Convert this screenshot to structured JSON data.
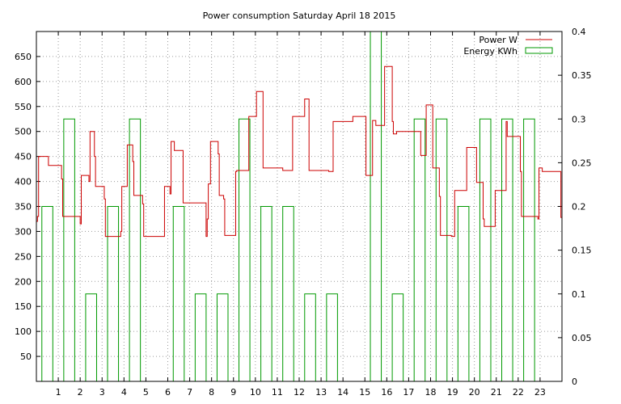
{
  "chart_data": {
    "type": "line",
    "title": "Power consumption Saturday April 18 2015",
    "xlabel": "",
    "ylabel": "",
    "y2label": "",
    "x_range": [
      0,
      24
    ],
    "y_range": [
      0,
      700
    ],
    "y2_range": [
      0,
      0.4
    ],
    "x_ticks": [
      1,
      2,
      3,
      4,
      5,
      6,
      7,
      8,
      9,
      10,
      11,
      12,
      13,
      14,
      15,
      16,
      17,
      18,
      19,
      20,
      21,
      22,
      23
    ],
    "y_ticks": [
      50,
      100,
      150,
      200,
      250,
      300,
      350,
      400,
      450,
      500,
      550,
      600,
      650
    ],
    "y2_ticks": [
      "0",
      "0.05",
      "0.1",
      "0.15",
      "0.2",
      "0.25",
      "0.3",
      "0.35",
      "0.4"
    ],
    "grid": true,
    "legend_position": "top-right",
    "colors": {
      "power": "#cc0000",
      "energy": "#009900"
    },
    "series": [
      {
        "name": "Power W",
        "axis": "y",
        "style": "steps",
        "points": [
          [
            0,
            320
          ],
          [
            0.05,
            330
          ],
          [
            0.1,
            450
          ],
          [
            0.5,
            450
          ],
          [
            0.55,
            432
          ],
          [
            1.1,
            432
          ],
          [
            1.15,
            405
          ],
          [
            1.2,
            330
          ],
          [
            1.95,
            330
          ],
          [
            2.0,
            315
          ],
          [
            2.05,
            412
          ],
          [
            2.35,
            412
          ],
          [
            2.4,
            400
          ],
          [
            2.45,
            500
          ],
          [
            2.6,
            500
          ],
          [
            2.65,
            450
          ],
          [
            2.7,
            390
          ],
          [
            3.05,
            390
          ],
          [
            3.1,
            365
          ],
          [
            3.15,
            290
          ],
          [
            3.8,
            290
          ],
          [
            3.85,
            300
          ],
          [
            3.9,
            390
          ],
          [
            4.1,
            390
          ],
          [
            4.15,
            473
          ],
          [
            4.35,
            473
          ],
          [
            4.4,
            440
          ],
          [
            4.45,
            372
          ],
          [
            4.8,
            372
          ],
          [
            4.85,
            355
          ],
          [
            4.9,
            290
          ],
          [
            5.8,
            290
          ],
          [
            5.85,
            390
          ],
          [
            6.05,
            390
          ],
          [
            6.1,
            375
          ],
          [
            6.15,
            480
          ],
          [
            6.25,
            480
          ],
          [
            6.3,
            462
          ],
          [
            6.65,
            462
          ],
          [
            6.7,
            357
          ],
          [
            7.7,
            357
          ],
          [
            7.75,
            290
          ],
          [
            7.8,
            325
          ],
          [
            7.85,
            395
          ],
          [
            7.9,
            395
          ],
          [
            7.95,
            480
          ],
          [
            8.25,
            480
          ],
          [
            8.3,
            455
          ],
          [
            8.35,
            372
          ],
          [
            8.5,
            372
          ],
          [
            8.55,
            365
          ],
          [
            8.6,
            292
          ],
          [
            9.05,
            292
          ],
          [
            9.1,
            420
          ],
          [
            9.15,
            422
          ],
          [
            9.65,
            422
          ],
          [
            9.7,
            530
          ],
          [
            10.0,
            530
          ],
          [
            10.05,
            580
          ],
          [
            10.3,
            580
          ],
          [
            10.35,
            427
          ],
          [
            11.2,
            427
          ],
          [
            11.25,
            422
          ],
          [
            11.65,
            422
          ],
          [
            11.7,
            530
          ],
          [
            12.2,
            530
          ],
          [
            12.25,
            565
          ],
          [
            12.4,
            565
          ],
          [
            12.45,
            422
          ],
          [
            13.3,
            422
          ],
          [
            13.35,
            420
          ],
          [
            13.5,
            420
          ],
          [
            13.55,
            520
          ],
          [
            14.4,
            520
          ],
          [
            14.45,
            530
          ],
          [
            15.0,
            530
          ],
          [
            15.05,
            412
          ],
          [
            15.3,
            412
          ],
          [
            15.35,
            522
          ],
          [
            15.45,
            522
          ],
          [
            15.5,
            512
          ],
          [
            15.85,
            512
          ],
          [
            15.9,
            630
          ],
          [
            16.2,
            630
          ],
          [
            16.25,
            520
          ],
          [
            16.3,
            495
          ],
          [
            16.4,
            495
          ],
          [
            16.45,
            500
          ],
          [
            17.5,
            500
          ],
          [
            17.55,
            452
          ],
          [
            17.75,
            452
          ],
          [
            17.8,
            553
          ],
          [
            18.05,
            553
          ],
          [
            18.1,
            427
          ],
          [
            18.35,
            427
          ],
          [
            18.4,
            370
          ],
          [
            18.45,
            292
          ],
          [
            18.9,
            292
          ],
          [
            18.95,
            290
          ],
          [
            19.05,
            290
          ],
          [
            19.1,
            382
          ],
          [
            19.6,
            382
          ],
          [
            19.65,
            468
          ],
          [
            20.05,
            468
          ],
          [
            20.1,
            398
          ],
          [
            20.35,
            398
          ],
          [
            20.4,
            325
          ],
          [
            20.45,
            310
          ],
          [
            20.9,
            310
          ],
          [
            20.95,
            382
          ],
          [
            21.4,
            382
          ],
          [
            21.45,
            520
          ],
          [
            21.5,
            490
          ],
          [
            22.05,
            490
          ],
          [
            22.1,
            420
          ],
          [
            22.15,
            330
          ],
          [
            22.85,
            330
          ],
          [
            22.9,
            325
          ],
          [
            22.95,
            427
          ],
          [
            23.05,
            427
          ],
          [
            23.1,
            420
          ],
          [
            23.9,
            420
          ],
          [
            23.95,
            328
          ],
          [
            24.0,
            328
          ]
        ]
      },
      {
        "name": "Energy KWh",
        "axis": "y2",
        "style": "boxes",
        "bars": [
          [
            0,
            0.2
          ],
          [
            1,
            0.3
          ],
          [
            2,
            0.1
          ],
          [
            3,
            0.2
          ],
          [
            4,
            0.3
          ],
          [
            5,
            0
          ],
          [
            6,
            0.2
          ],
          [
            7,
            0.1
          ],
          [
            8,
            0.1
          ],
          [
            9,
            0.3
          ],
          [
            10,
            0.2
          ],
          [
            11,
            0.2
          ],
          [
            12,
            0.1
          ],
          [
            13,
            0.1
          ],
          [
            14,
            0
          ],
          [
            15,
            0.4
          ],
          [
            16,
            0.1
          ],
          [
            17,
            0.3
          ],
          [
            18,
            0.3
          ],
          [
            19,
            0.2
          ],
          [
            20,
            0.3
          ],
          [
            21,
            0.3
          ],
          [
            22,
            0.3
          ],
          [
            23,
            0
          ]
        ]
      }
    ]
  }
}
